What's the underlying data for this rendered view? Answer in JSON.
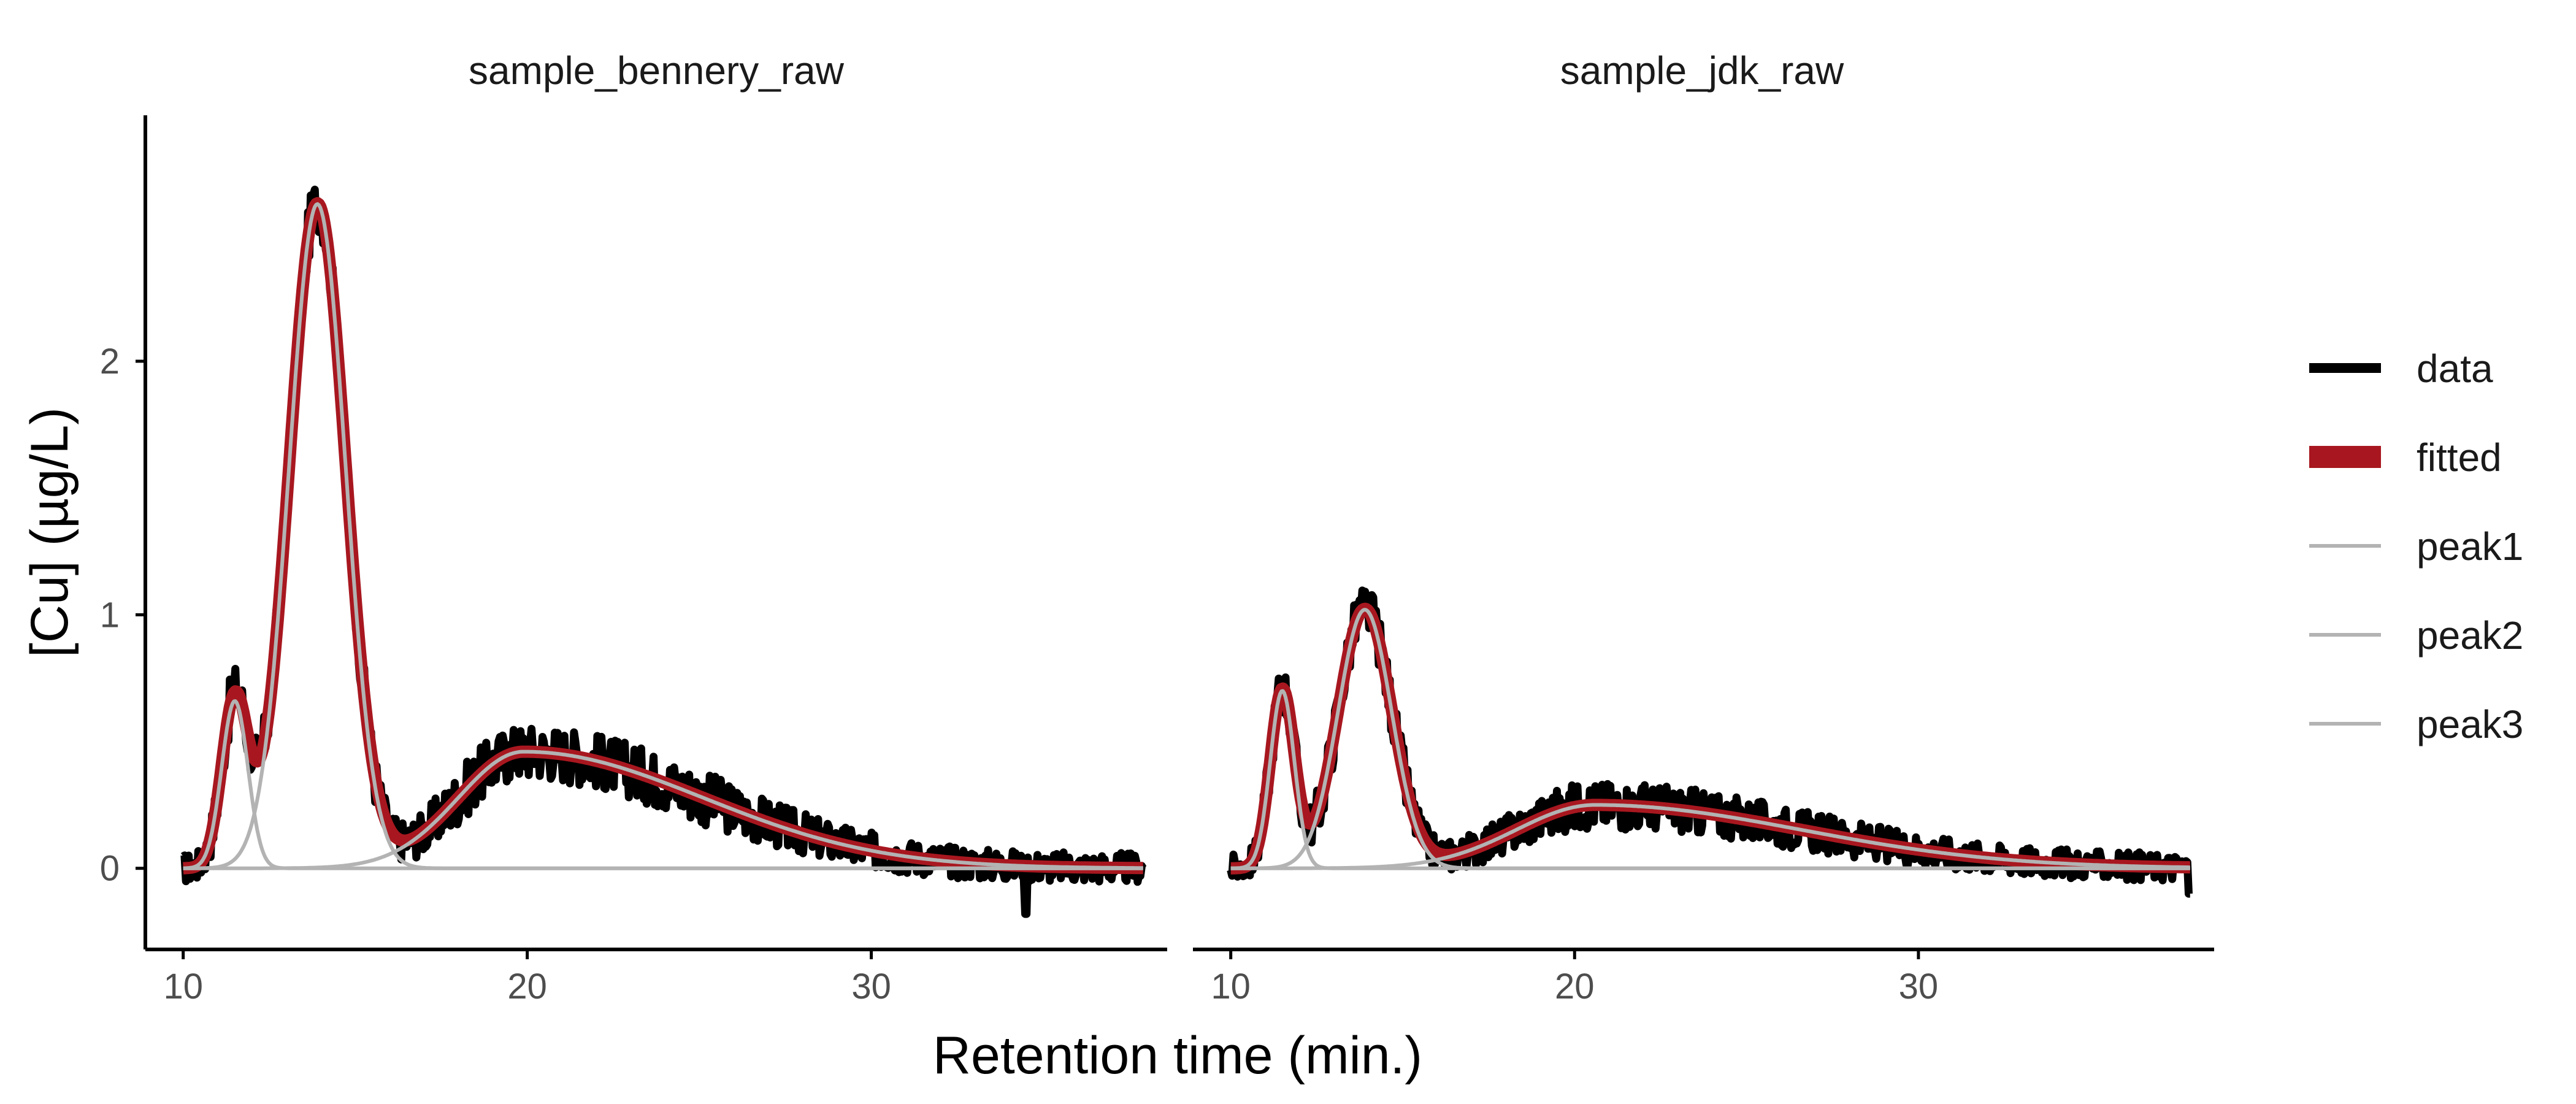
{
  "colors": {
    "data": "#000000",
    "fitted": "#a8171f",
    "peak": "#b3b3b3",
    "axis": "#000000",
    "tick_label": "#4d4d4d"
  },
  "chart_data": {
    "type": "line",
    "xlabel": "Retention time (min.)",
    "ylabel": "[Cu] (µg/L)",
    "xlim": [
      8.9,
      38.6
    ],
    "ylim": [
      -0.32,
      2.97
    ],
    "x_ticks": [
      10,
      20,
      30
    ],
    "y_ticks": [
      0,
      1,
      2
    ],
    "grid": false,
    "legend_position": "right",
    "legend": [
      "data",
      "fitted",
      "peak1",
      "peak2",
      "peak3"
    ],
    "facets": [
      {
        "title": "sample_bennery_raw",
        "x_range": [
          10,
          37.9
        ],
        "peaks": [
          {
            "name": "peak1",
            "height": 0.66,
            "center": 11.5,
            "width": 0.38
          },
          {
            "name": "peak2",
            "height": 2.62,
            "center": 13.9,
            "width": 0.82
          },
          {
            "name": "peak3",
            "height": 0.46,
            "center": 19.9,
            "width_left": 1.9,
            "width_right": 5.2
          }
        ],
        "noise_amplitude": 0.11,
        "noise_dip": {
          "x": 34.5,
          "value": -0.18
        }
      },
      {
        "title": "sample_jdk_raw",
        "x_range": [
          10,
          37.9
        ],
        "peaks": [
          {
            "name": "peak1",
            "height": 0.7,
            "center": 11.5,
            "width": 0.35
          },
          {
            "name": "peak2",
            "height": 1.02,
            "center": 13.9,
            "width": 0.78
          },
          {
            "name": "peak3",
            "height": 0.25,
            "center": 20.6,
            "width_left": 2.3,
            "width_right": 6.0
          }
        ],
        "noise_amplitude": 0.1,
        "noise_dip": {
          "x": 37.9,
          "value": -0.1
        }
      }
    ]
  }
}
